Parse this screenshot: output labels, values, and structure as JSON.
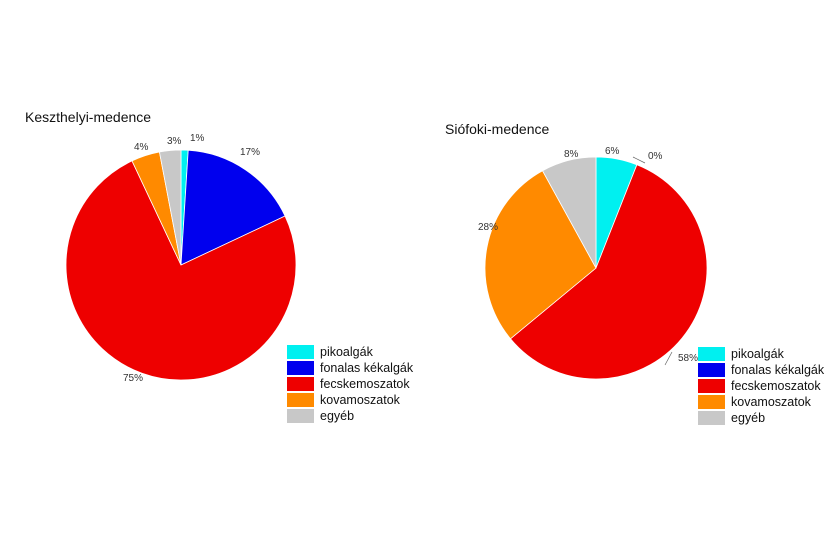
{
  "colors": {
    "pikoalgák": "#00f0f0",
    "fonalas kékalgák": "#0000ee",
    "fecskemoszatok": "#ee0000",
    "kovamoszatok": "#ff8a00",
    "egyéb": "#c8c8c8"
  },
  "chart_data": [
    {
      "type": "pie",
      "title": "Keszthelyi-medence",
      "legend_position": "bottom-right",
      "categories": [
        "pikoalgák",
        "fonalas kékalgák",
        "fecskemoszatok",
        "kovamoszatok",
        "egyéb"
      ],
      "values": [
        1,
        17,
        75,
        4,
        3
      ],
      "labels": [
        "1%",
        "17%",
        "75%",
        "4%",
        "3%"
      ],
      "legend": [
        "pikoalgák",
        "fonalas kékalgák",
        "fecskemoszatok",
        "kovamoszatok",
        "egyéb"
      ]
    },
    {
      "type": "pie",
      "title": "Siófoki-medence",
      "legend_position": "bottom-right",
      "categories": [
        "pikoalgák",
        "fonalas kékalgák",
        "fecskemoszatok",
        "kovamoszatok",
        "egyéb"
      ],
      "values": [
        6,
        0,
        58,
        28,
        8
      ],
      "labels": [
        "6%",
        "0%",
        "58%",
        "28%",
        "8%"
      ],
      "legend": [
        "pikoalgák",
        "fonalas kékalgák",
        "fecskemoszatok",
        "kovamoszatok",
        "egyéb"
      ]
    }
  ]
}
